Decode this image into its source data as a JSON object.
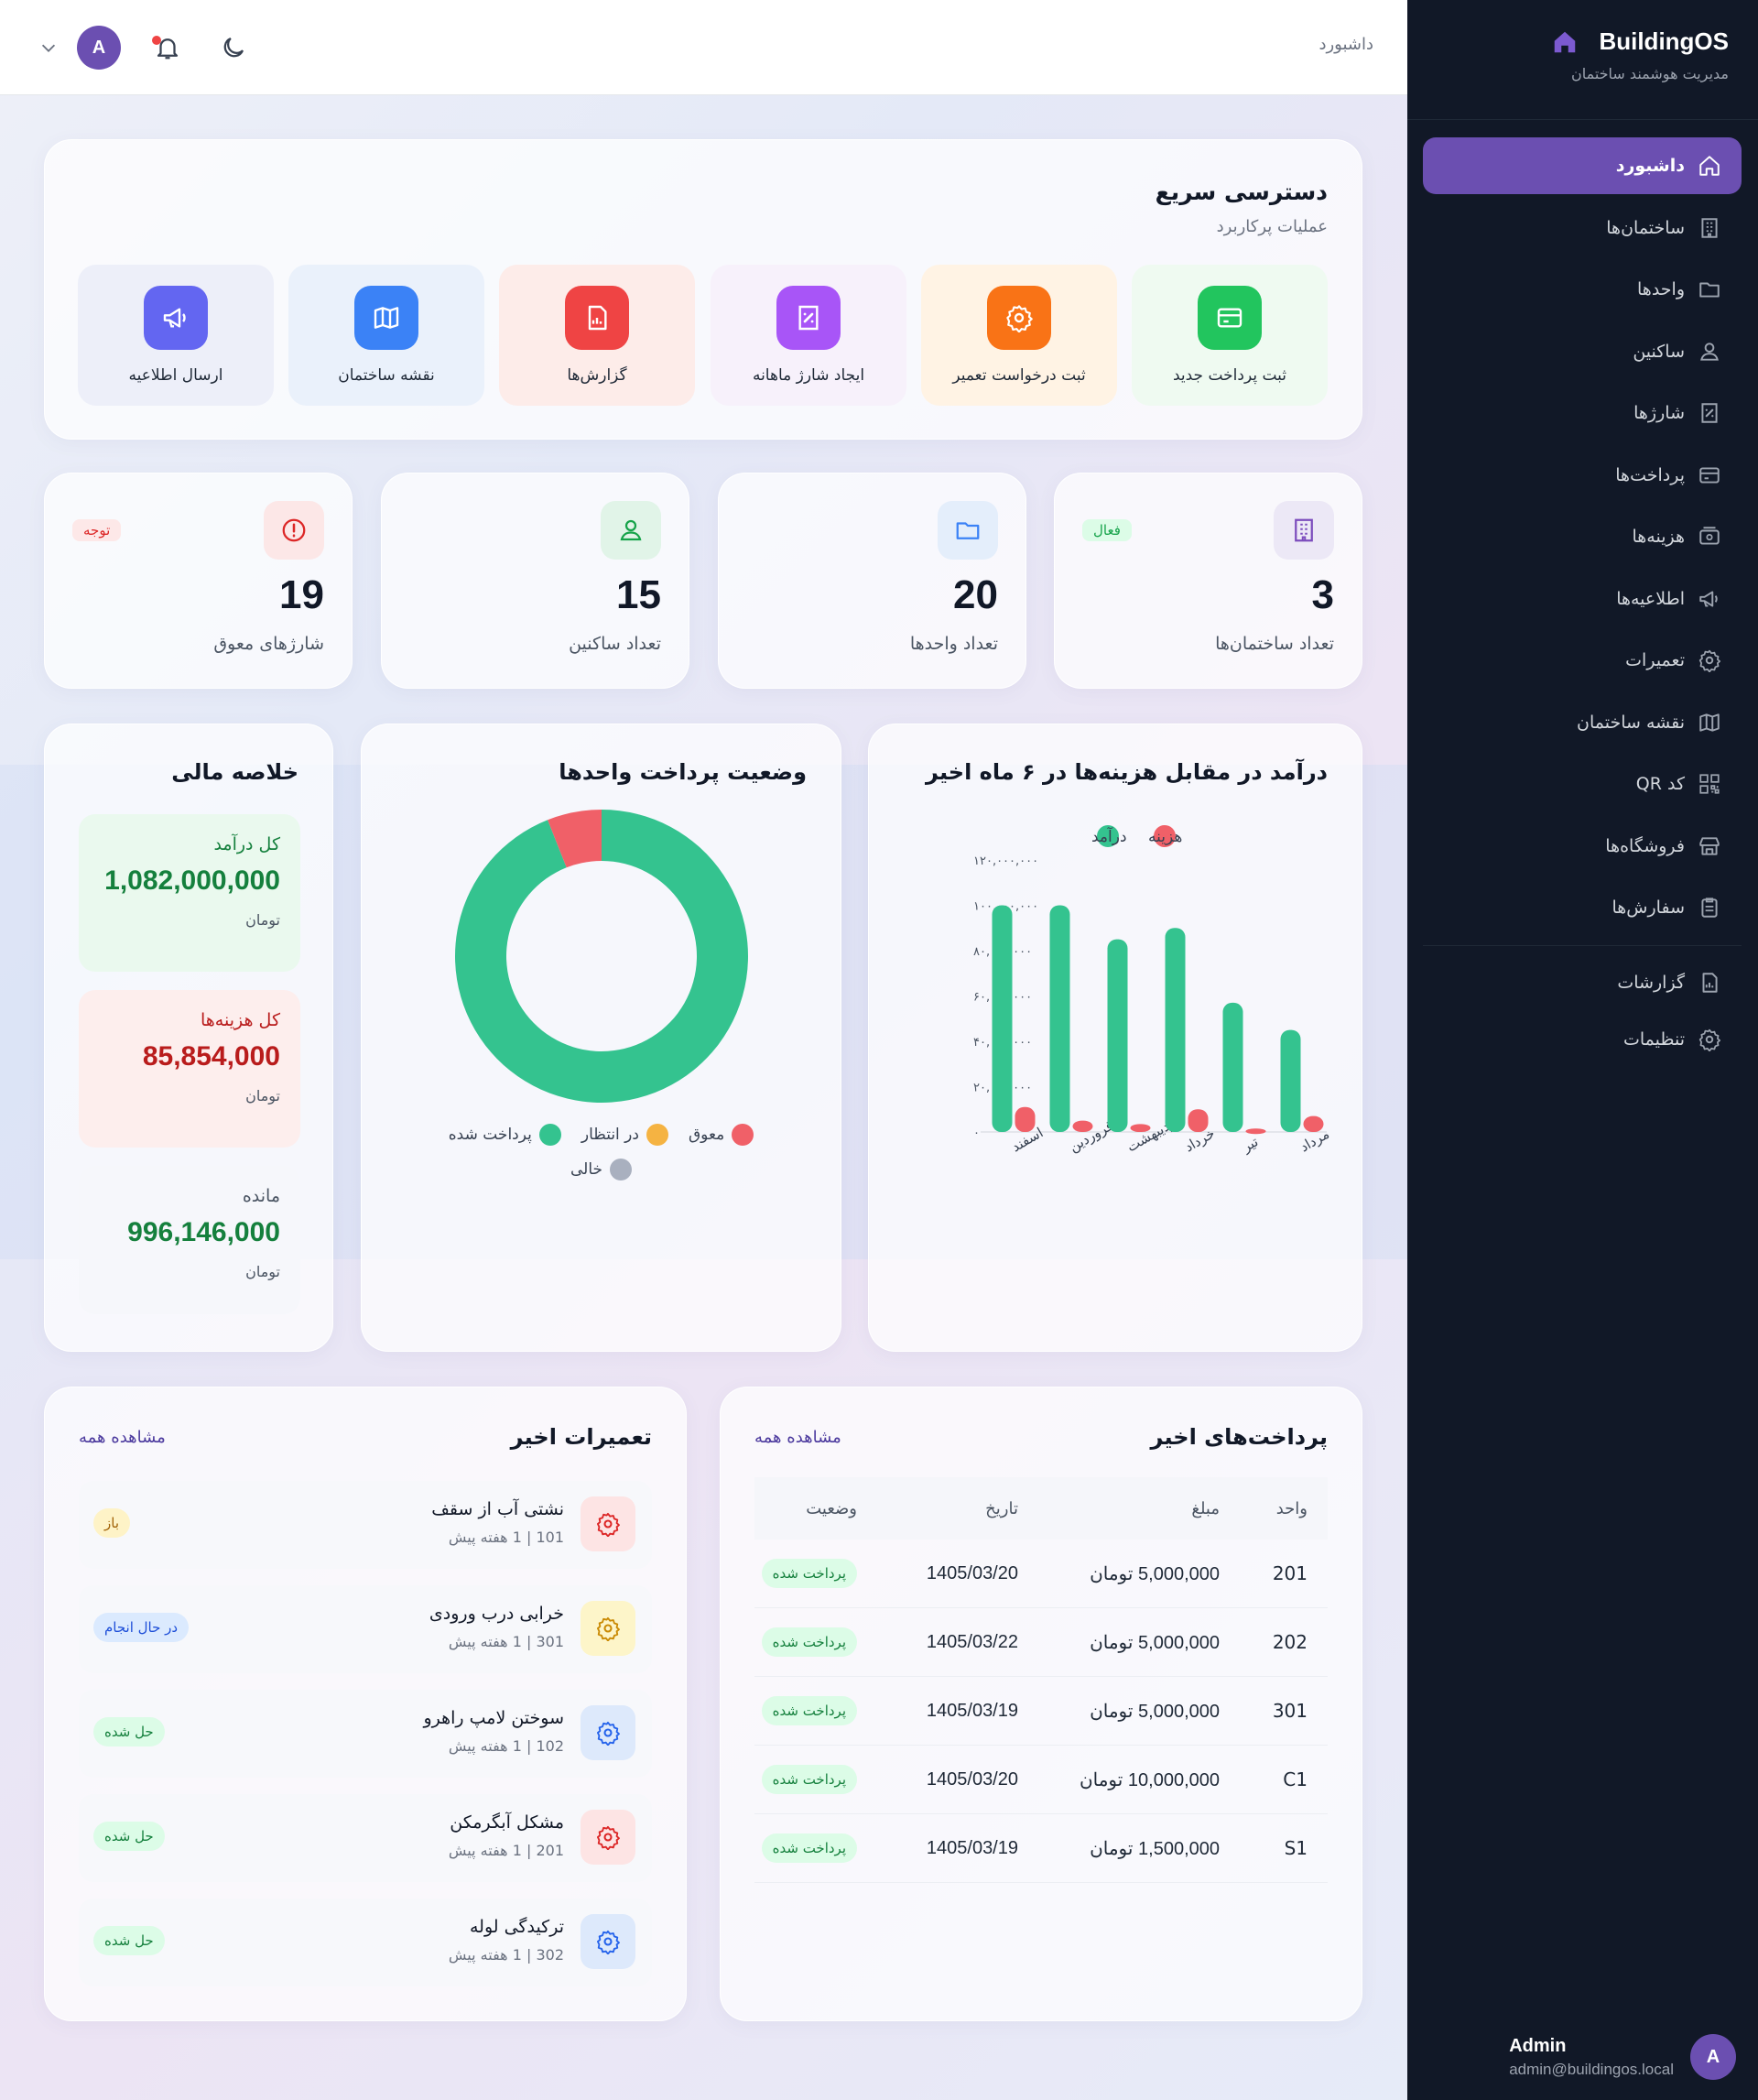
{
  "brand": {
    "name": "BuildingOS",
    "subtitle": "مدیریت هوشمند ساختمان"
  },
  "breadcrumb": "داشبورد",
  "user": {
    "initial": "A",
    "name": "Admin",
    "email": "admin@buildingos.local"
  },
  "sidebar": {
    "items": [
      {
        "label": "داشبورد",
        "icon": "home-icon",
        "active": true
      },
      {
        "label": "ساختمان‌ها",
        "icon": "building-icon"
      },
      {
        "label": "واحدها",
        "icon": "folder-icon"
      },
      {
        "label": "ساکنین",
        "icon": "user-icon"
      },
      {
        "label": "شارژها",
        "icon": "receipt-icon"
      },
      {
        "label": "پرداخت‌ها",
        "icon": "credit-card-icon"
      },
      {
        "label": "هزینه‌ها",
        "icon": "wallet-icon"
      },
      {
        "label": "اطلاعیه‌ها",
        "icon": "megaphone-icon"
      },
      {
        "label": "تعمیرات",
        "icon": "gear-icon"
      },
      {
        "label": "نقشه ساختمان",
        "icon": "map-icon"
      },
      {
        "label": "کد QR",
        "icon": "qr-icon"
      },
      {
        "label": "فروشگاه‌ها",
        "icon": "store-icon"
      },
      {
        "label": "سفارش‌ها",
        "icon": "clipboard-icon"
      }
    ],
    "bottom_items": [
      {
        "label": "گزارشات",
        "icon": "report-icon"
      },
      {
        "label": "تنظیمات",
        "icon": "settings-icon"
      }
    ]
  },
  "quick_access": {
    "title": "دسترسی سریع",
    "subtitle": "عملیات پرکاربرد",
    "actions": [
      {
        "label": "ثبت پرداخت جدید",
        "icon": "credit-card-icon",
        "color": "#22c55e",
        "bg": "#effaf1"
      },
      {
        "label": "ثبت درخواست تعمیر",
        "icon": "gear-icon",
        "color": "#f97316",
        "bg": "#fff3e4"
      },
      {
        "label": "ایجاد شارژ ماهانه",
        "icon": "receipt-icon",
        "color": "#a855f7",
        "bg": "#f7f1fb"
      },
      {
        "label": "گزارش‌ها",
        "icon": "report-icon",
        "color": "#ef4444",
        "bg": "#fdece9"
      },
      {
        "label": "نقشه ساختمان",
        "icon": "map-icon",
        "color": "#3b82f6",
        "bg": "#eaf1fb"
      },
      {
        "label": "ارسال اطلاعیه",
        "icon": "megaphone-icon",
        "color": "#6366f1",
        "bg": "#edeff9"
      }
    ]
  },
  "stats": [
    {
      "value": "3",
      "label": "تعداد ساختمان‌ها",
      "icon": "building-icon",
      "badge": "فعال",
      "badge_color": "#16a34a",
      "badge_bg": "#dcfce7",
      "icon_color": "#7c4dbd",
      "icon_bg": "#ece8f6"
    },
    {
      "value": "20",
      "label": "تعداد واحدها",
      "icon": "folder-icon",
      "badge": "",
      "icon_color": "#3b82f6",
      "icon_bg": "#e4eefb"
    },
    {
      "value": "15",
      "label": "تعداد ساکنین",
      "icon": "user-icon",
      "badge": "",
      "icon_color": "#16a34a",
      "icon_bg": "#e1f4e8"
    },
    {
      "value": "19",
      "label": "شارژهای معوق",
      "icon": "alert-icon",
      "badge": "توجه",
      "badge_color": "#dc2626",
      "badge_bg": "#fde8e8",
      "icon_color": "#dc2626",
      "icon_bg": "#fce7e7"
    }
  ],
  "income_chart": {
    "title": "درآمد در مقابل هزینه‌ها در ۶ ماه اخیر",
    "legend": {
      "income": "درآمد",
      "expense": "هزینه"
    },
    "colors": {
      "income": "#34c38f",
      "expense": "#f06068"
    }
  },
  "chart_data": [
    {
      "type": "bar",
      "categories": [
        "اسفند",
        "فروردین",
        "اردیبهشت",
        "خرداد",
        "تیر",
        "مرداد"
      ],
      "series": [
        {
          "name": "درآمد",
          "values": [
            100000000,
            100000000,
            85000000,
            90000000,
            57000000,
            45000000
          ]
        },
        {
          "name": "هزینه",
          "values": [
            11000000,
            5000000,
            3500000,
            10000000,
            1500000,
            7000000
          ]
        }
      ],
      "ylim": [
        0,
        120000000
      ],
      "yticks": [
        "۰",
        "۲۰,۰۰۰,۰۰۰",
        "۴۰,۰۰۰,۰۰۰",
        "۶۰,۰۰۰,۰۰۰",
        "۸۰,۰۰۰,۰۰۰",
        "۱۰۰,۰۰۰,۰۰۰",
        "۱۲۰,۰۰۰,۰۰۰"
      ],
      "legend_position": "top",
      "grid": false
    },
    {
      "type": "pie",
      "categories": [
        "پرداخت شده",
        "معوق"
      ],
      "values": [
        94,
        6
      ],
      "colors": [
        "#34c38f",
        "#f06068"
      ]
    }
  ],
  "payment_status": {
    "title": "وضعیت پرداخت واحدها",
    "legend": [
      {
        "label": "معوق",
        "color": "#f06068"
      },
      {
        "label": "در انتظار",
        "color": "#f5b342"
      },
      {
        "label": "پرداخت شده",
        "color": "#34c38f"
      },
      {
        "label": "خالی",
        "color": "#a9b0bf"
      }
    ]
  },
  "finance": {
    "title": "خلاصه مالی",
    "income": {
      "label": "کل درآمد",
      "value": "1,082,000,000",
      "unit": "تومان"
    },
    "expense": {
      "label": "کل هزینه‌ها",
      "value": "85,854,000",
      "unit": "تومان"
    },
    "balance": {
      "label": "مانده",
      "value": "996,146,000",
      "unit": "تومان"
    }
  },
  "payments": {
    "title": "پرداخت‌های اخیر",
    "view_all": "مشاهده همه",
    "columns": [
      "واحد",
      "مبلغ",
      "تاریخ",
      "وضعیت"
    ],
    "rows": [
      {
        "unit": "201",
        "amount": "5,000,000 تومان",
        "date": "1405/03/20",
        "status": "پرداخت شده"
      },
      {
        "unit": "202",
        "amount": "5,000,000 تومان",
        "date": "1405/03/22",
        "status": "پرداخت شده"
      },
      {
        "unit": "301",
        "amount": "5,000,000 تومان",
        "date": "1405/03/19",
        "status": "پرداخت شده"
      },
      {
        "unit": "C1",
        "amount": "10,000,000 تومان",
        "date": "1405/03/20",
        "status": "پرداخت شده"
      },
      {
        "unit": "S1",
        "amount": "1,500,000 تومان",
        "date": "1405/03/19",
        "status": "پرداخت شده"
      }
    ]
  },
  "repairs": {
    "title": "تعمیرات اخیر",
    "view_all": "مشاهده همه",
    "items": [
      {
        "title": "نشتی آب از سقف",
        "meta": "101 | 1 هفته پیش",
        "status": "باز",
        "status_color": "#a16207",
        "status_bg": "#fef3c7",
        "icon_color": "#dc2626",
        "icon_bg": "#fde4e4"
      },
      {
        "title": "خرابی درب ورودی",
        "meta": "301 | 1 هفته پیش",
        "status": "در حال انجام",
        "status_color": "#1d4ed8",
        "status_bg": "#dbeafe",
        "icon_color": "#ca8a04",
        "icon_bg": "#fdf5c9"
      },
      {
        "title": "سوختن لامپ راهرو",
        "meta": "102 | 1 هفته پیش",
        "status": "حل شده",
        "status_color": "#15803d",
        "status_bg": "#dcfce7",
        "icon_color": "#2563eb",
        "icon_bg": "#dde9fb"
      },
      {
        "title": "مشکل آبگرمکن",
        "meta": "201 | 1 هفته پیش",
        "status": "حل شده",
        "status_color": "#15803d",
        "status_bg": "#dcfce7",
        "icon_color": "#dc2626",
        "icon_bg": "#fde4e4"
      },
      {
        "title": "ترکیدگی لوله",
        "meta": "302 | 1 هفته پیش",
        "status": "حل شده",
        "status_color": "#15803d",
        "status_bg": "#dcfce7",
        "icon_color": "#2563eb",
        "icon_bg": "#dde9fb"
      }
    ]
  }
}
